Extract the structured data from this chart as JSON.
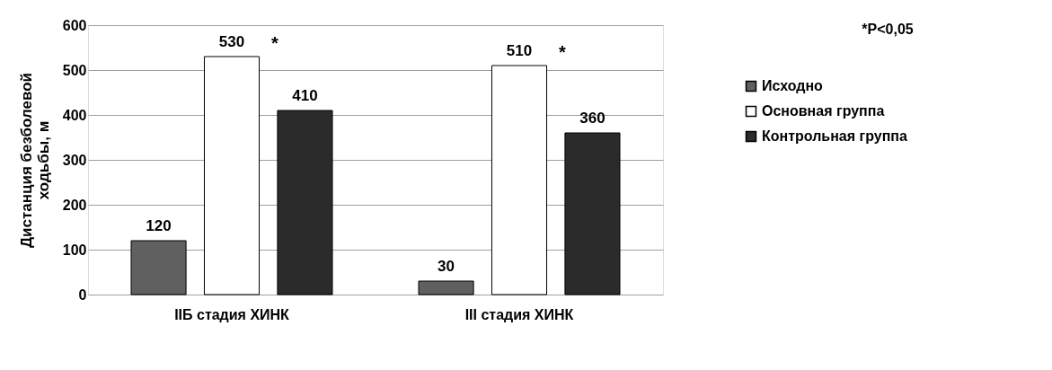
{
  "chart_data": {
    "type": "bar",
    "categories": [
      "IIБ стадия ХИНК",
      "III стадия ХИНК"
    ],
    "ylabel": "Дистанция безболевой ходьбы, м",
    "series": [
      {
        "name": "Исходно",
        "color": "#606060",
        "values": [
          120,
          30
        ]
      },
      {
        "name": "Основная группа",
        "color": "#ffffff",
        "values": [
          530,
          510
        ]
      },
      {
        "name": "Контрольная группа",
        "color": "#2b2b2b",
        "values": [
          410,
          360
        ]
      }
    ],
    "ylim": [
      0,
      600
    ],
    "yticks": [
      0,
      100,
      200,
      300,
      400,
      500,
      600
    ],
    "grid": "y",
    "legend": "right",
    "data_labels": true,
    "annotations": [
      "*",
      "*",
      "*P<0,05"
    ]
  }
}
